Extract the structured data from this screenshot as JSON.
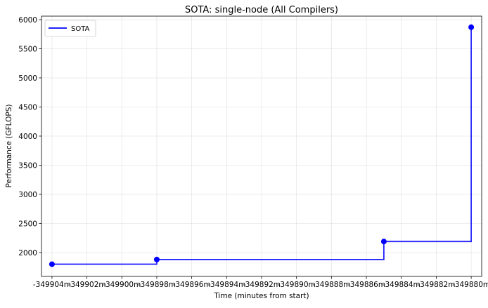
{
  "chart_data": {
    "type": "line",
    "title": "SOTA: single-node (All Compilers)",
    "xlabel": "Time (minutes from start)",
    "ylabel": "Performance (GFLOPS)",
    "xlim": [
      -349904.6,
      -349879.4
    ],
    "ylim": [
      1590,
      6060
    ],
    "xticks": [
      -349904,
      -349902,
      -349900,
      -349898,
      -349896,
      -349894,
      -349892,
      -349890,
      -349888,
      -349886,
      -349884,
      -349882,
      -349880
    ],
    "xtick_labels": [
      "-349904m",
      "-349902m",
      "-349900m",
      "-349898m",
      "-349896m",
      "-349894m",
      "-349892m",
      "-349890m",
      "-349888m",
      "-349886m",
      "-349884m",
      "-349882m",
      "-349880m"
    ],
    "yticks": [
      2000,
      2500,
      3000,
      3500,
      4000,
      4500,
      5000,
      5500,
      6000
    ],
    "ytick_labels": [
      "2000",
      "2500",
      "3000",
      "3500",
      "4000",
      "4500",
      "5000",
      "5500",
      "6000"
    ],
    "grid": true,
    "legend_position": "top-left",
    "step": "post",
    "series": [
      {
        "name": "SOTA",
        "color": "#0000ff",
        "x": [
          -349904.0,
          -349898.0,
          -349885.0,
          -349880.0
        ],
        "y": [
          1800,
          1880,
          2190,
          5870
        ]
      }
    ]
  }
}
